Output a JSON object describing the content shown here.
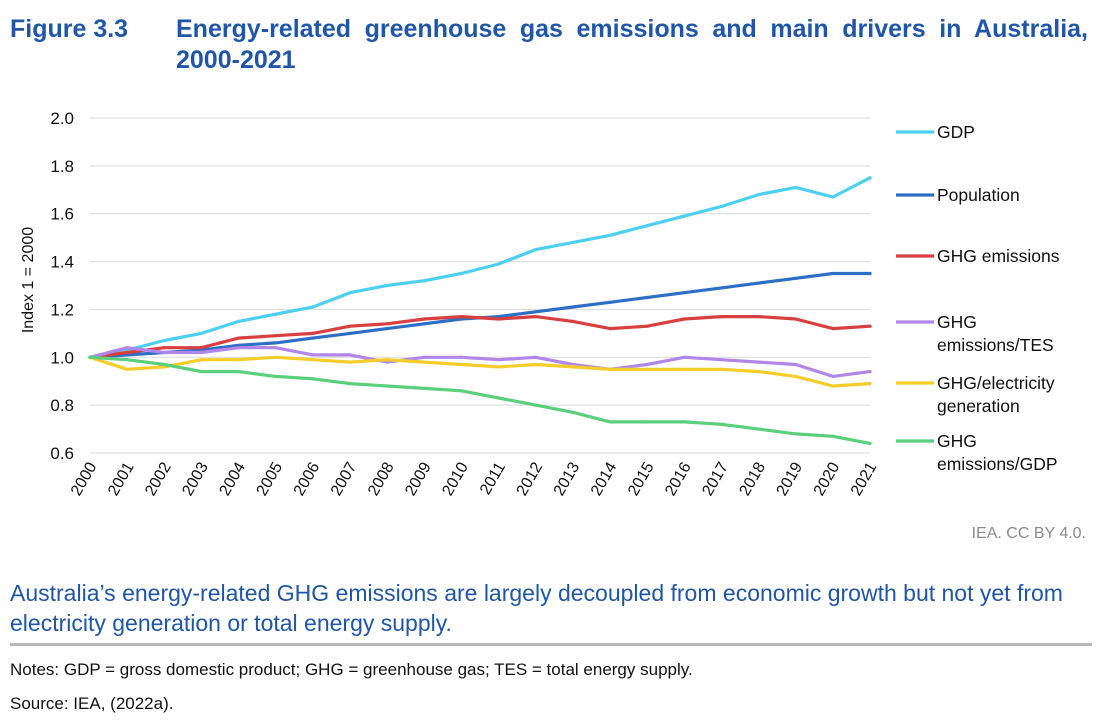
{
  "figure": {
    "number": "Figure 3.3",
    "title": "Energy-related greenhouse gas emissions and main drivers in Australia, 2000-2021"
  },
  "credit": "IEA. CC BY 4.0.",
  "caption": "Australia’s energy-related GHG emissions are largely decoupled from economic growth but not yet from electricity generation or total energy supply.",
  "notes": "Notes: GDP = gross domestic product; GHG = greenhouse gas; TES = total energy supply.",
  "source": "Source: IEA, (2022a).",
  "chart_data": {
    "type": "line",
    "title": "",
    "xlabel": "",
    "ylabel": "Index 1 = 2000",
    "ylim": [
      0.6,
      2.0
    ],
    "yticks": [
      "0.6",
      "0.8",
      "1.0",
      "1.2",
      "1.4",
      "1.6",
      "1.8",
      "2.0"
    ],
    "grid": true,
    "legend_position": "right",
    "x": [
      "2000",
      "2001",
      "2002",
      "2003",
      "2004",
      "2005",
      "2006",
      "2007",
      "2008",
      "2009",
      "2010",
      "2011",
      "2012",
      "2013",
      "2014",
      "2015",
      "2016",
      "2017",
      "2018",
      "2019",
      "2020",
      "2021"
    ],
    "series": [
      {
        "name": "GDP",
        "color": "#4dd0f0",
        "values": [
          1.0,
          1.03,
          1.07,
          1.1,
          1.15,
          1.18,
          1.21,
          1.27,
          1.3,
          1.32,
          1.35,
          1.39,
          1.45,
          1.48,
          1.51,
          1.55,
          1.59,
          1.63,
          1.68,
          1.71,
          1.67,
          1.75
        ]
      },
      {
        "name": "Population",
        "color": "#2e6fc6",
        "values": [
          1.0,
          1.01,
          1.02,
          1.03,
          1.05,
          1.06,
          1.08,
          1.1,
          1.12,
          1.14,
          1.16,
          1.17,
          1.19,
          1.21,
          1.23,
          1.25,
          1.27,
          1.29,
          1.31,
          1.33,
          1.35,
          1.35
        ]
      },
      {
        "name": "GHG emissions",
        "color": "#d84040",
        "values": [
          1.0,
          1.02,
          1.04,
          1.04,
          1.08,
          1.09,
          1.1,
          1.13,
          1.14,
          1.16,
          1.17,
          1.16,
          1.17,
          1.15,
          1.12,
          1.13,
          1.16,
          1.17,
          1.17,
          1.16,
          1.12,
          1.13
        ]
      },
      {
        "name": "GHG emissions/TES",
        "color": "#b087e8",
        "values": [
          1.0,
          1.04,
          1.02,
          1.02,
          1.04,
          1.04,
          1.01,
          1.01,
          0.98,
          1.0,
          1.0,
          0.99,
          1.0,
          0.97,
          0.95,
          0.97,
          1.0,
          0.99,
          0.98,
          0.97,
          0.92,
          0.94
        ]
      },
      {
        "name": "GHG/electricity generation",
        "color": "#f5cd2a",
        "values": [
          1.0,
          0.95,
          0.96,
          0.99,
          0.99,
          1.0,
          0.99,
          0.98,
          0.99,
          0.98,
          0.97,
          0.96,
          0.97,
          0.96,
          0.95,
          0.95,
          0.95,
          0.95,
          0.94,
          0.92,
          0.88,
          0.89
        ]
      },
      {
        "name": "GHG emissions/GDP",
        "color": "#5bcf7c",
        "values": [
          1.0,
          0.99,
          0.97,
          0.94,
          0.94,
          0.92,
          0.91,
          0.89,
          0.88,
          0.87,
          0.86,
          0.83,
          0.8,
          0.77,
          0.73,
          0.73,
          0.73,
          0.72,
          0.7,
          0.68,
          0.67,
          0.64
        ]
      }
    ]
  }
}
